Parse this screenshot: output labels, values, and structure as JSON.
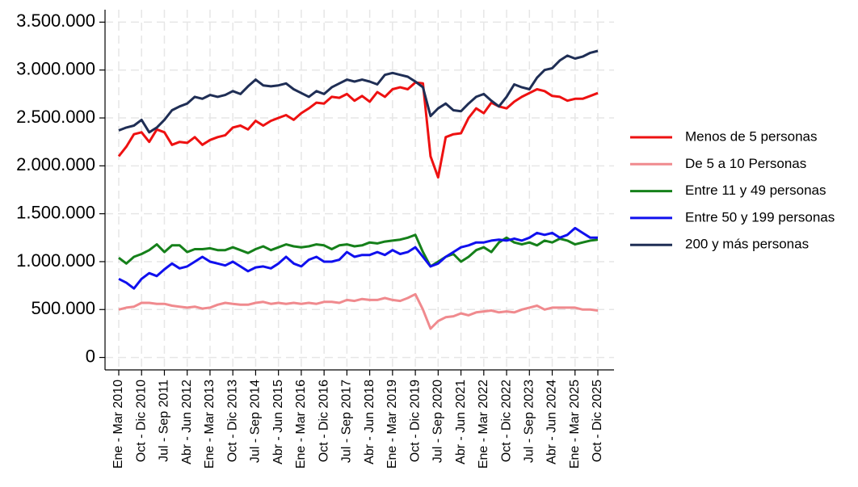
{
  "chart_data": {
    "type": "line",
    "categories": [
      "Ene - Mar 2010",
      null,
      null,
      "Oct - Dic 2010",
      null,
      null,
      "Jul - Sep 2011",
      null,
      null,
      "Abr - Jun 2012",
      null,
      null,
      "Ene - Mar 2013",
      null,
      null,
      "Oct - Dic 2013",
      null,
      null,
      "Jul - Sep 2014",
      null,
      null,
      "Abr - Jun 2015",
      null,
      null,
      "Ene - Mar 2016",
      null,
      null,
      "Oct - Dic 2016",
      null,
      null,
      "Jul - Sep 2017",
      null,
      null,
      "Abr - Jun 2018",
      null,
      null,
      "Ene - Mar 2019",
      null,
      null,
      "Oct - Dic 2019",
      null,
      null,
      "Jul - Sep 2020",
      null,
      null,
      "Abr - Jun 2021",
      null,
      null,
      "Ene - Mar 2022",
      null,
      null,
      "Oct - Dic 2022",
      null,
      null,
      "Jul - Sep 2023",
      null,
      null,
      "Abr - Jun 2024",
      null,
      null,
      "Ene - Mar 2025",
      null,
      null,
      "Oct - Dic 2025"
    ],
    "series": [
      {
        "name": "Menos de 5 personas",
        "color": "#ee1111",
        "values": [
          2100000,
          2200000,
          2330000,
          2350000,
          2250000,
          2380000,
          2350000,
          2220000,
          2250000,
          2240000,
          2300000,
          2220000,
          2270000,
          2300000,
          2320000,
          2400000,
          2420000,
          2380000,
          2470000,
          2420000,
          2470000,
          2500000,
          2530000,
          2480000,
          2550000,
          2600000,
          2660000,
          2650000,
          2720000,
          2710000,
          2750000,
          2680000,
          2730000,
          2670000,
          2770000,
          2720000,
          2800000,
          2820000,
          2800000,
          2870000,
          2860000,
          2100000,
          1880000,
          2300000,
          2330000,
          2340000,
          2500000,
          2600000,
          2550000,
          2660000,
          2620000,
          2600000,
          2670000,
          2720000,
          2760000,
          2800000,
          2780000,
          2730000,
          2720000,
          2680000,
          2700000,
          2700000,
          2730000,
          2760000
        ]
      },
      {
        "name": "De 5 a 10 Personas",
        "color": "#f08a8e",
        "values": [
          500000,
          520000,
          530000,
          570000,
          570000,
          560000,
          560000,
          540000,
          530000,
          520000,
          530000,
          510000,
          520000,
          550000,
          570000,
          560000,
          550000,
          550000,
          570000,
          580000,
          560000,
          570000,
          560000,
          570000,
          560000,
          570000,
          560000,
          580000,
          580000,
          570000,
          600000,
          590000,
          610000,
          600000,
          600000,
          620000,
          600000,
          590000,
          620000,
          660000,
          500000,
          300000,
          380000,
          420000,
          430000,
          460000,
          440000,
          470000,
          480000,
          490000,
          470000,
          480000,
          470000,
          500000,
          520000,
          540000,
          500000,
          520000,
          520000,
          520000,
          520000,
          500000,
          500000,
          490000
        ]
      },
      {
        "name": "Entre 11 y 49 personas",
        "color": "#15801a",
        "values": [
          1040000,
          980000,
          1050000,
          1080000,
          1120000,
          1180000,
          1100000,
          1170000,
          1170000,
          1100000,
          1130000,
          1130000,
          1140000,
          1120000,
          1120000,
          1150000,
          1120000,
          1090000,
          1130000,
          1160000,
          1120000,
          1150000,
          1180000,
          1160000,
          1150000,
          1160000,
          1180000,
          1170000,
          1130000,
          1170000,
          1180000,
          1160000,
          1170000,
          1200000,
          1190000,
          1210000,
          1220000,
          1230000,
          1250000,
          1280000,
          1100000,
          950000,
          1000000,
          1050000,
          1080000,
          1000000,
          1050000,
          1120000,
          1150000,
          1100000,
          1200000,
          1250000,
          1200000,
          1180000,
          1200000,
          1170000,
          1220000,
          1200000,
          1240000,
          1220000,
          1180000,
          1200000,
          1220000,
          1230000
        ]
      },
      {
        "name": "Entre 50 y 199 personas",
        "color": "#1010ee",
        "values": [
          820000,
          780000,
          720000,
          820000,
          880000,
          850000,
          920000,
          980000,
          930000,
          950000,
          1000000,
          1050000,
          1000000,
          980000,
          960000,
          1000000,
          950000,
          900000,
          940000,
          950000,
          930000,
          980000,
          1050000,
          980000,
          950000,
          1020000,
          1050000,
          1000000,
          1000000,
          1020000,
          1100000,
          1050000,
          1070000,
          1070000,
          1100000,
          1070000,
          1120000,
          1080000,
          1100000,
          1150000,
          1050000,
          950000,
          980000,
          1050000,
          1100000,
          1150000,
          1170000,
          1200000,
          1200000,
          1220000,
          1230000,
          1220000,
          1240000,
          1220000,
          1250000,
          1300000,
          1280000,
          1300000,
          1250000,
          1280000,
          1350000,
          1300000,
          1250000,
          1250000
        ]
      },
      {
        "name": "200 y más personas",
        "color": "#1f2e55",
        "values": [
          2370000,
          2400000,
          2420000,
          2480000,
          2350000,
          2400000,
          2480000,
          2580000,
          2620000,
          2650000,
          2720000,
          2700000,
          2740000,
          2720000,
          2740000,
          2780000,
          2750000,
          2830000,
          2900000,
          2840000,
          2830000,
          2840000,
          2860000,
          2800000,
          2760000,
          2720000,
          2780000,
          2750000,
          2820000,
          2860000,
          2900000,
          2880000,
          2900000,
          2880000,
          2850000,
          2950000,
          2970000,
          2950000,
          2930000,
          2880000,
          2820000,
          2520000,
          2600000,
          2650000,
          2580000,
          2570000,
          2650000,
          2720000,
          2750000,
          2680000,
          2620000,
          2720000,
          2850000,
          2820000,
          2800000,
          2920000,
          3000000,
          3020000,
          3100000,
          3150000,
          3120000,
          3140000,
          3180000,
          3200000
        ]
      }
    ],
    "ylim": [
      -130000,
      3630000
    ],
    "yticks": [
      0,
      {
        "value": 500000,
        "label": "500.000"
      },
      {
        "value": 1000000,
        "label": "1.000.000"
      },
      {
        "value": 1500000,
        "label": "1.500.000"
      },
      {
        "value": 2000000,
        "label": "2.000.000"
      },
      {
        "value": 2500000,
        "label": "2.500.000"
      },
      {
        "value": 3000000,
        "label": "3.000.000"
      },
      {
        "value": 3500000,
        "label": "3.500.000"
      }
    ],
    "grid": true,
    "legend": "right"
  }
}
